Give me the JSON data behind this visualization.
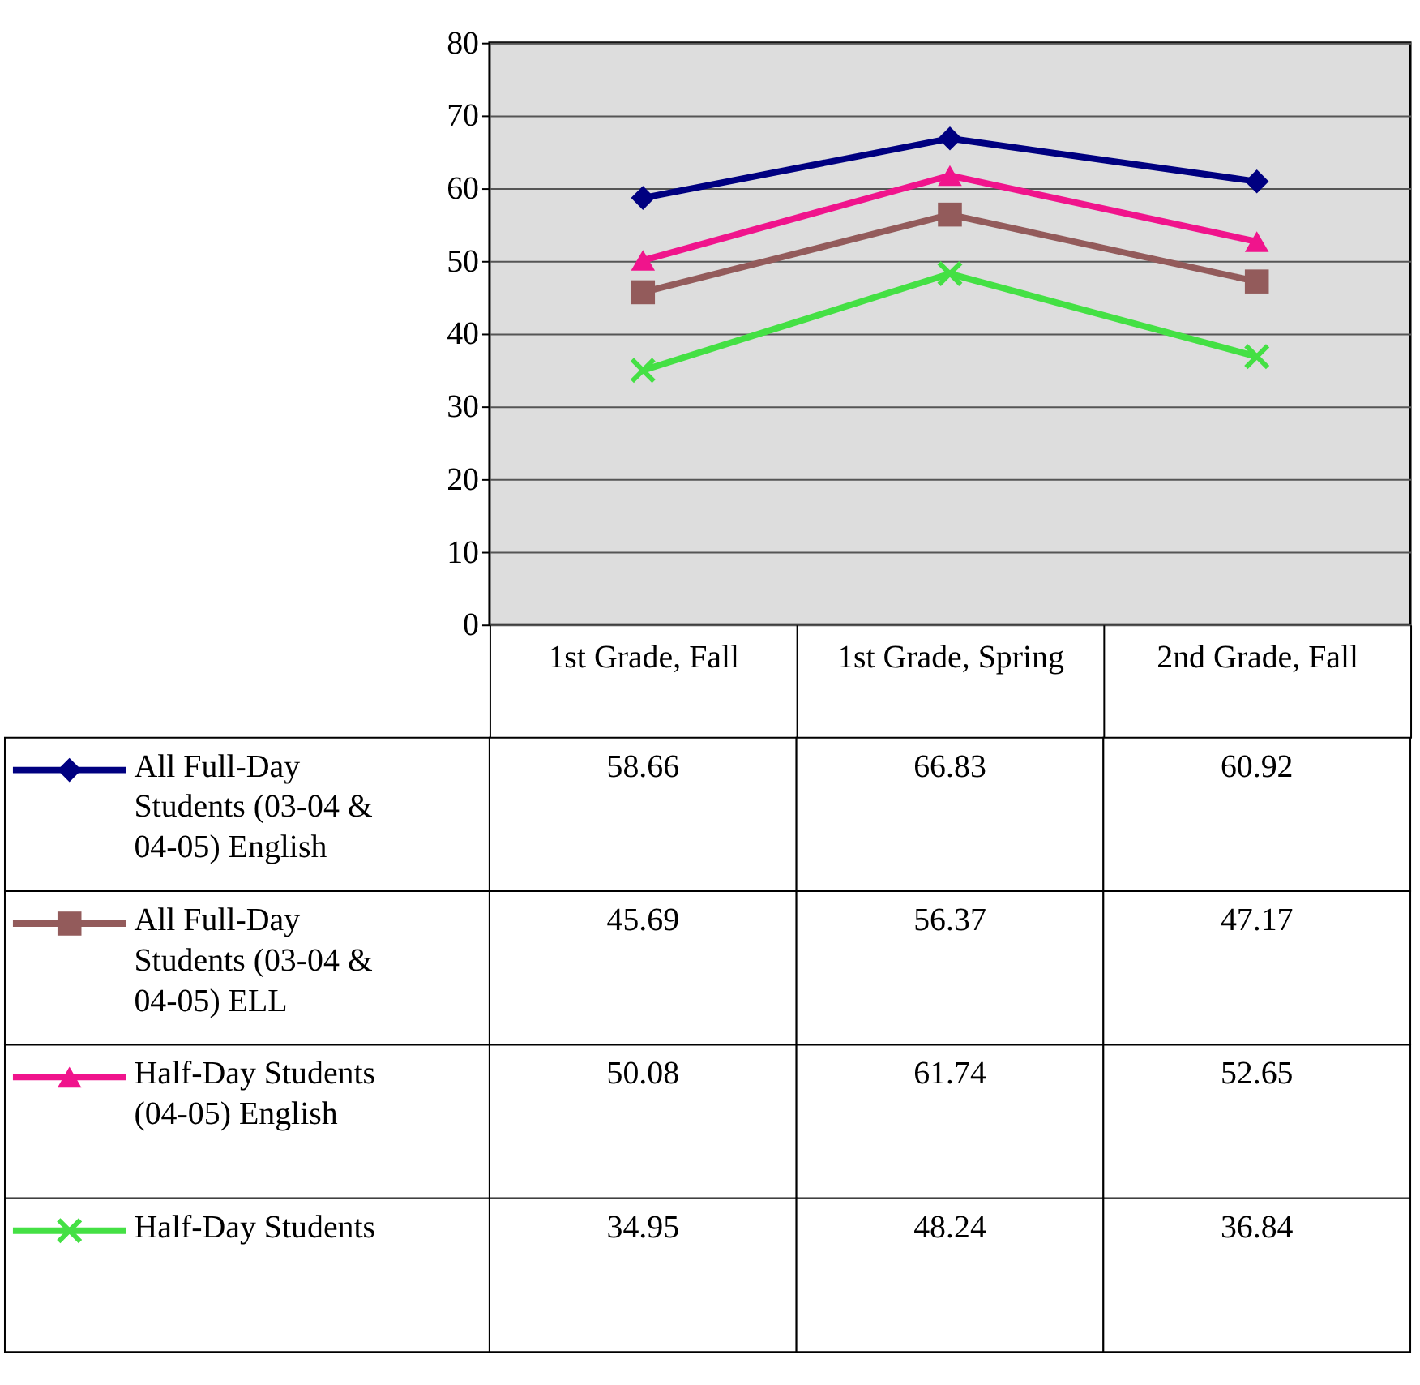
{
  "chart_data": {
    "type": "line",
    "categories": [
      "1st Grade, Fall",
      "1st Grade, Spring",
      "2nd Grade, Fall"
    ],
    "series": [
      {
        "name": "All Full-Day Students (03-04 & 04-05) English",
        "color": "#000080",
        "marker": "diamond",
        "values": [
          58.66,
          66.83,
          60.92
        ]
      },
      {
        "name": "All Full-Day Students (03-04 & 04-05) ELL",
        "color": "#935b5b",
        "marker": "square",
        "values": [
          45.69,
          56.37,
          47.17
        ]
      },
      {
        "name": "Half-Day Students (04-05) English",
        "color": "#f0148c",
        "marker": "triangle",
        "values": [
          50.08,
          61.74,
          52.65
        ]
      },
      {
        "name": "Half-Day Students",
        "color": "#44e044",
        "marker": "cross",
        "values": [
          34.95,
          48.24,
          36.84
        ]
      }
    ],
    "ylim": [
      0,
      80
    ],
    "yticks": [
      0,
      10,
      20,
      30,
      40,
      50,
      60,
      70,
      80
    ],
    "grid": "y",
    "legend": "bottom",
    "data_labels": true
  }
}
